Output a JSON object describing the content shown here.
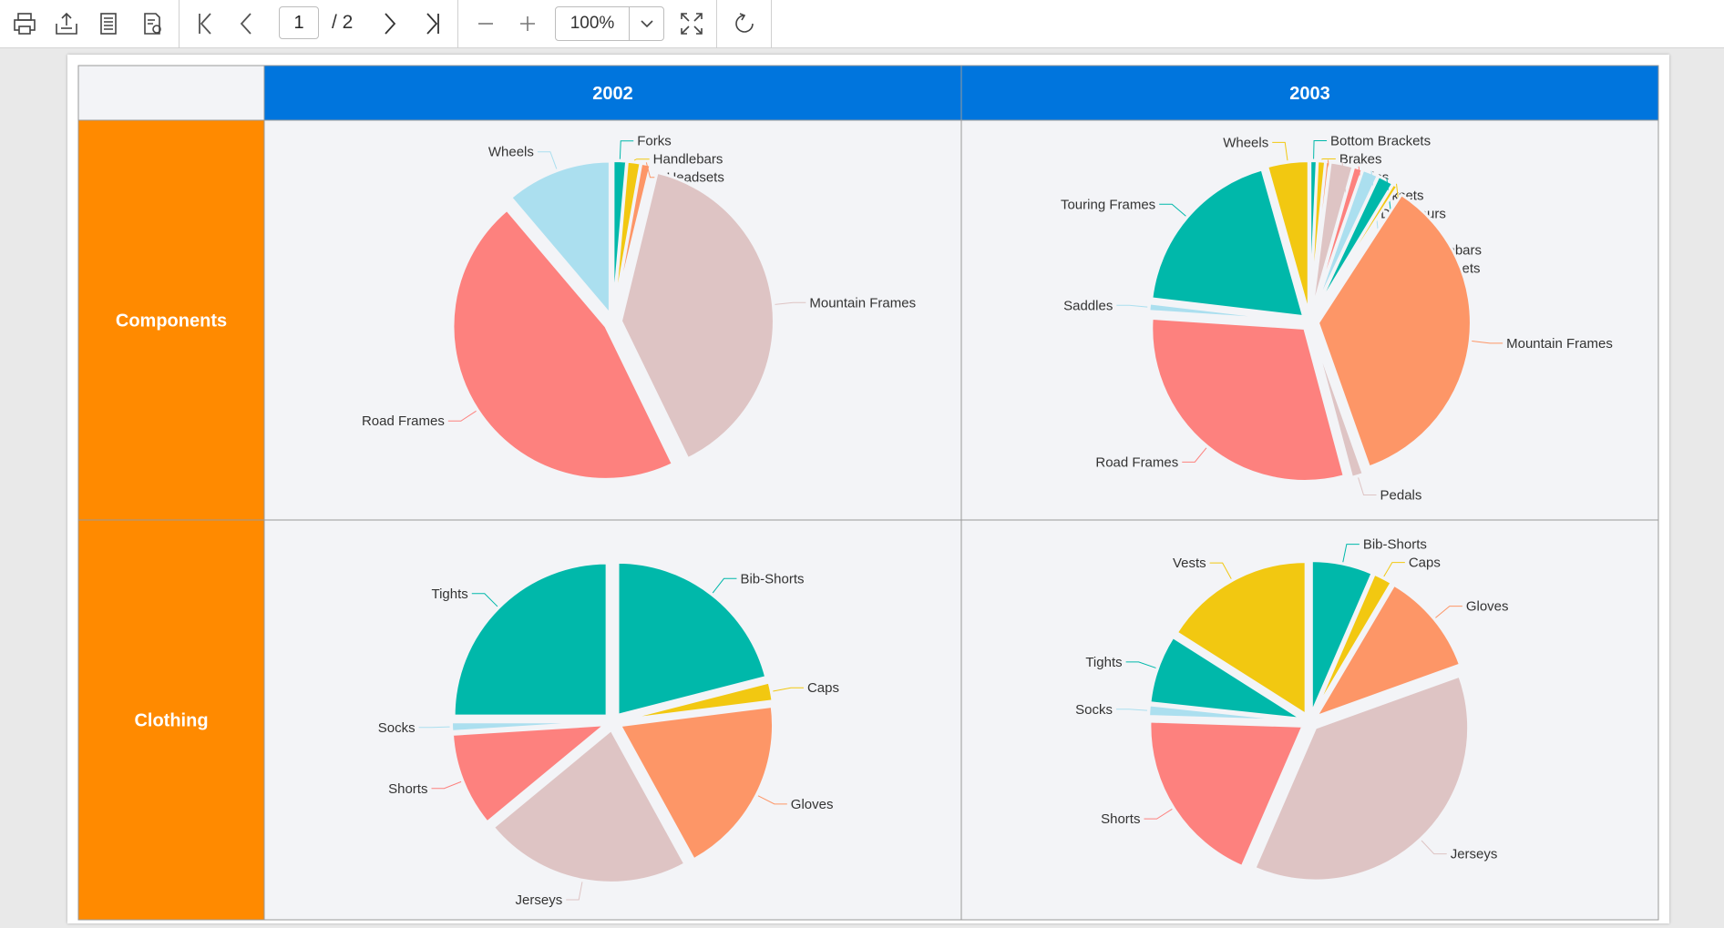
{
  "toolbar": {
    "page_current": "1",
    "page_total": "/ 2",
    "zoom": "100%",
    "icons": [
      "print-icon",
      "export-icon",
      "page-setup-icon",
      "print-layout-icon",
      "first-page-icon",
      "previous-page-icon",
      "next-page-icon",
      "last-page-icon",
      "zoom-out-icon",
      "zoom-in-icon",
      "chevron-down-icon",
      "fit-page-icon",
      "refresh-icon"
    ]
  },
  "report": {
    "columns": [
      "2002",
      "2003"
    ],
    "rows": [
      "Components",
      "Clothing"
    ],
    "colors": {
      "header_bg": "#0075dd",
      "row_header_bg": "#ff8a00",
      "corner_bg": "#f3f4f7",
      "cell_bg": "#f3f4f7",
      "palette": [
        "#00b8aa",
        "#f2c811",
        "#fd9667",
        "#dec4c4",
        "#fd817e",
        "#abdfef"
      ]
    }
  },
  "chart_data": [
    {
      "type": "pie",
      "row": "Components",
      "column": "2002",
      "categories": [
        "Forks",
        "Handlebars",
        "Headsets",
        "Mountain Frames",
        "Road Frames",
        "Wheels"
      ],
      "values": [
        1.4,
        1.4,
        1.0,
        39.0,
        46.0,
        11.2
      ]
    },
    {
      "type": "pie",
      "row": "Components",
      "column": "2003",
      "categories": [
        "Bottom Brackets",
        "Brakes",
        "Chains",
        "Cranksets",
        "Derailleurs",
        "Forks",
        "Handlebars",
        "Headsets",
        "Mountain Frames",
        "Pedals",
        "Road Frames",
        "Saddles",
        "Touring Frames",
        "Wheels"
      ],
      "values": [
        0.7,
        0.8,
        0.4,
        2.3,
        0.9,
        1.6,
        1.6,
        0.5,
        34.0,
        1.2,
        29.0,
        0.8,
        18.0,
        4.2
      ]
    },
    {
      "type": "pie",
      "row": "Clothing",
      "column": "2002",
      "categories": [
        "Bib-Shorts",
        "Caps",
        "Gloves",
        "Jerseys",
        "Shorts",
        "Socks",
        "Tights"
      ],
      "values": [
        21.0,
        2.0,
        19.0,
        22.0,
        10.0,
        1.0,
        25.0
      ]
    },
    {
      "type": "pie",
      "row": "Clothing",
      "column": "2003",
      "categories": [
        "Bib-Shorts",
        "Caps",
        "Gloves",
        "Jerseys",
        "Shorts",
        "Socks",
        "Tights",
        "Vests"
      ],
      "values": [
        6.5,
        2.0,
        11.0,
        37.0,
        19.0,
        1.2,
        7.3,
        16.0
      ]
    }
  ]
}
